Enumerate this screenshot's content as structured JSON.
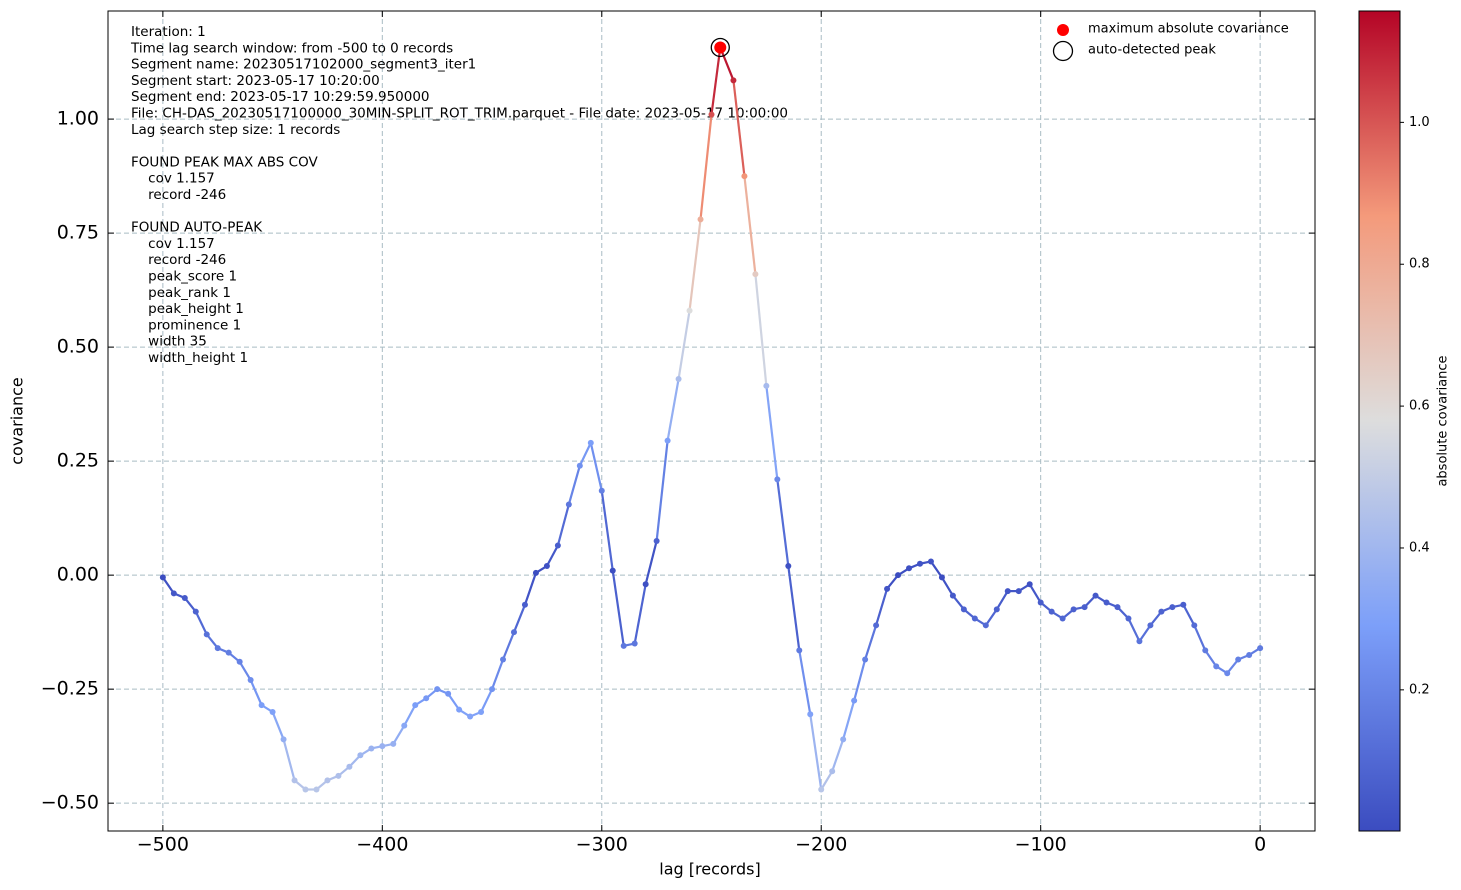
{
  "chart_data": {
    "type": "line",
    "xlabel": "lag [records]",
    "ylabel": "covariance",
    "x": [
      -500,
      -495,
      -490,
      -485,
      -480,
      -475,
      -470,
      -465,
      -460,
      -455,
      -450,
      -445,
      -440,
      -435,
      -430,
      -425,
      -420,
      -415,
      -410,
      -405,
      -400,
      -395,
      -390,
      -385,
      -380,
      -375,
      -370,
      -365,
      -360,
      -355,
      -350,
      -345,
      -340,
      -335,
      -330,
      -325,
      -320,
      -315,
      -310,
      -305,
      -300,
      -295,
      -290,
      -285,
      -280,
      -275,
      -270,
      -265,
      -260,
      -255,
      -250,
      -246,
      -240,
      -235,
      -230,
      -225,
      -220,
      -215,
      -210,
      -205,
      -200,
      -195,
      -190,
      -185,
      -180,
      -175,
      -170,
      -165,
      -160,
      -155,
      -150,
      -145,
      -140,
      -135,
      -130,
      -125,
      -120,
      -115,
      -110,
      -105,
      -100,
      -95,
      -90,
      -85,
      -80,
      -75,
      -70,
      -65,
      -60,
      -55,
      -50,
      -45,
      -40,
      -35,
      -30,
      -25,
      -20,
      -15,
      -10,
      -5,
      0
    ],
    "values": [
      -0.005,
      -0.04,
      -0.05,
      -0.08,
      -0.13,
      -0.16,
      -0.17,
      -0.19,
      -0.23,
      -0.285,
      -0.3,
      -0.36,
      -0.45,
      -0.47,
      -0.47,
      -0.45,
      -0.44,
      -0.42,
      -0.395,
      -0.38,
      -0.375,
      -0.37,
      -0.33,
      -0.285,
      -0.27,
      -0.25,
      -0.26,
      -0.295,
      -0.31,
      -0.3,
      -0.25,
      -0.185,
      -0.125,
      -0.065,
      0.005,
      0.02,
      0.065,
      0.155,
      0.24,
      0.29,
      0.185,
      0.01,
      -0.155,
      -0.15,
      -0.02,
      0.075,
      0.295,
      0.43,
      0.58,
      0.78,
      1.01,
      1.157,
      1.085,
      0.875,
      0.66,
      0.415,
      0.21,
      0.02,
      -0.165,
      -0.305,
      -0.47,
      -0.43,
      -0.36,
      -0.275,
      -0.185,
      -0.11,
      -0.03,
      0.0,
      0.015,
      0.025,
      0.03,
      -0.005,
      -0.045,
      -0.075,
      -0.095,
      -0.11,
      -0.075,
      -0.035,
      -0.035,
      -0.02,
      -0.06,
      -0.08,
      -0.095,
      -0.075,
      -0.07,
      -0.045,
      -0.06,
      -0.07,
      -0.095,
      -0.145,
      -0.11,
      -0.08,
      -0.07,
      -0.065,
      -0.11,
      -0.165,
      -0.2,
      -0.215,
      -0.185,
      -0.175,
      -0.16
    ],
    "xlim": [
      -525,
      25
    ],
    "ylim": [
      -0.561,
      1.237
    ],
    "xticks": [
      {
        "value": -500,
        "label": "−500"
      },
      {
        "value": -400,
        "label": "−400"
      },
      {
        "value": -300,
        "label": "−300"
      },
      {
        "value": -200,
        "label": "−200"
      },
      {
        "value": -100,
        "label": "−100"
      },
      0
    ],
    "yticks": [
      {
        "value": -0.5,
        "label": "−0.50"
      },
      {
        "value": -0.25,
        "label": "−0.25"
      },
      {
        "value": 0,
        "label": "0.00"
      },
      {
        "value": 0.25,
        "label": "0.25"
      },
      {
        "value": 0.5,
        "label": "0.50"
      },
      {
        "value": 0.75,
        "label": "0.75"
      },
      {
        "value": 1,
        "label": "1.00"
      }
    ],
    "grid": true,
    "colormap": "coolwarm",
    "colorbar": {
      "label": "absolute covariance",
      "clim": [
        0.001,
        1.157
      ],
      "ticks": [
        0.2,
        0.4,
        0.6,
        0.8,
        {
          "value": 1,
          "label": "1.0"
        }
      ]
    },
    "peaks": [
      {
        "name": "maximum absolute covariance",
        "x": -246,
        "y": 1.157,
        "color": "#ff0000"
      },
      {
        "name": "auto-detected peak",
        "x": -246,
        "y": 1.157,
        "color": "#000000"
      }
    ],
    "legend_position": "upper right",
    "annotation_blocks": [
      [
        "Iteration: 1",
        "Time lag search window: from -500 to 0 records",
        "Segment name: 20230517102000_segment3_iter1",
        "Segment start: 2023-05-17 10:20:00",
        "Segment end: 2023-05-17 10:29:59.950000",
        "File: CH-DAS_20230517100000_30MIN-SPLIT_ROT_TRIM.parquet - File date: 2023-05-17 10:00:00",
        "Lag search step size: 1 records"
      ],
      [
        "FOUND PEAK MAX ABS COV",
        "    cov 1.157",
        "    record -246"
      ],
      [
        "FOUND AUTO-PEAK",
        "    cov 1.157",
        "    record -246",
        "    peak_score 1",
        "    peak_rank 1",
        "    peak_height 1",
        "    prominence 1",
        "    width 35",
        "    width_height 1"
      ]
    ]
  }
}
